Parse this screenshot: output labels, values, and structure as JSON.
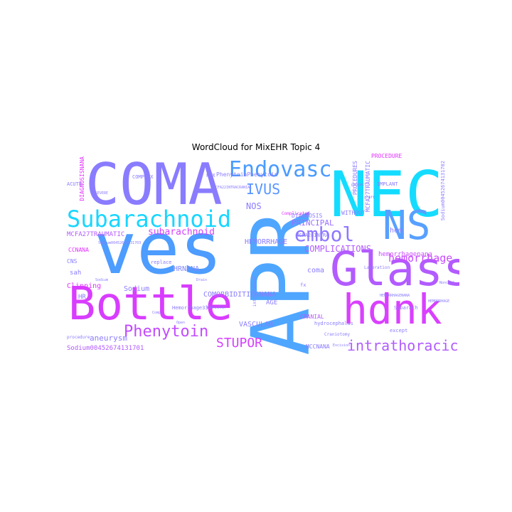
{
  "chart_data": {
    "type": "wordcloud",
    "title": "WordCloud for MixEHR Topic 4",
    "colormap": [
      "#00e5ff",
      "#4da6ff",
      "#8c78ff",
      "#b057ff",
      "#e033ff",
      "#ff19ff"
    ],
    "words": [
      {
        "text": "APR",
        "weight": 100,
        "color": "#4fa6ff",
        "rotate": true
      },
      {
        "text": "ves",
        "weight": 90,
        "color": "#4d9cff",
        "rotate": false
      },
      {
        "text": "NEC",
        "weight": 85,
        "color": "#14dcff",
        "rotate": false
      },
      {
        "text": "COMA",
        "weight": 75,
        "color": "#8a7cff",
        "rotate": false
      },
      {
        "text": "Bottle",
        "weight": 70,
        "color": "#d83dff",
        "rotate": false
      },
      {
        "text": "Glass",
        "weight": 66,
        "color": "#b25bff",
        "rotate": false
      },
      {
        "text": "hdnk",
        "weight": 64,
        "color": "#d940ff",
        "rotate": false
      },
      {
        "text": "NS",
        "weight": 55,
        "color": "#58a0ff",
        "rotate": false
      },
      {
        "text": "Subarachnoid",
        "weight": 35,
        "color": "#19d6ff",
        "rotate": false
      },
      {
        "text": "Endovasc",
        "weight": 30,
        "color": "#4a9bff",
        "rotate": false
      },
      {
        "text": "embol",
        "weight": 28,
        "color": "#8e78ff",
        "rotate": false
      },
      {
        "text": "Phenytoin",
        "weight": 24,
        "color": "#c24bff",
        "rotate": false
      },
      {
        "text": "intrathoracic",
        "weight": 22,
        "color": "#b05cff",
        "rotate": false
      },
      {
        "text": "IVUS",
        "weight": 20,
        "color": "#5a96ff",
        "rotate": false
      },
      {
        "text": "STUPOR",
        "weight": 17,
        "color": "#d43fff",
        "rotate": false
      },
      {
        "text": "hemorrhage",
        "weight": 16,
        "color": "#c94aff",
        "rotate": false
      },
      {
        "text": "subarachnoid",
        "weight": 14,
        "color": "#d43fff",
        "rotate": false
      },
      {
        "text": "COMPLICATIONS",
        "weight": 13,
        "color": "#b25bff",
        "rotate": false
      },
      {
        "text": "NOS",
        "weight": 12,
        "color": "#8a7cff",
        "rotate": false
      },
      {
        "text": "PRINCIPAL",
        "weight": 11,
        "color": "#9a70ff",
        "rotate": false
      },
      {
        "text": "aneurysm",
        "weight": 11,
        "color": "#8a7cff",
        "rotate": false
      },
      {
        "text": "HEMORRHAGE",
        "weight": 10,
        "color": "#8a7cff",
        "rotate": false
      },
      {
        "text": "Sodium",
        "weight": 10,
        "color": "#8a7cff",
        "rotate": false
      },
      {
        "text": "HRNANA",
        "weight": 10,
        "color": "#7d86ff",
        "rotate": false
      },
      {
        "text": "COMORBIDITIESNANA",
        "weight": 10,
        "color": "#8a7cff",
        "rotate": false
      },
      {
        "text": "Clipping",
        "weight": 10,
        "color": "#e033ff",
        "rotate": false
      },
      {
        "text": "VASCULAR",
        "weight": 10,
        "color": "#8a7cff",
        "rotate": false
      },
      {
        "text": "coma",
        "weight": 10,
        "color": "#8a7cff",
        "rotate": false
      },
      {
        "text": "hem",
        "weight": 10,
        "color": "#8a7cff",
        "rotate": false
      },
      {
        "text": "HR",
        "weight": 9,
        "color": "#8a7cff",
        "rotate": false
      },
      {
        "text": "AGE",
        "weight": 9,
        "color": "#8a7cff",
        "rotate": false
      },
      {
        "text": "sah",
        "weight": 9,
        "color": "#8a7cff",
        "rotate": false
      },
      {
        "text": "Sodium00452674131701",
        "weight": 9,
        "color": "#b25bff",
        "rotate": false
      },
      {
        "text": "MCFA27TRAUMATIC",
        "weight": 9,
        "color": "#b25bff",
        "rotate": false
      },
      {
        "text": "hemorrhagenana",
        "weight": 9,
        "color": "#c94aff",
        "rotate": false
      },
      {
        "text": "PhenytoinPhenytoin",
        "weight": 8,
        "color": "#8a7cff",
        "rotate": false
      },
      {
        "text": "DIAGNOSIS",
        "weight": 8,
        "color": "#8a7cff",
        "rotate": false
      },
      {
        "text": "PROCEDURE",
        "weight": 8,
        "color": "#e033ff",
        "rotate": false
      },
      {
        "text": "WITHOUT",
        "weight": 8,
        "color": "#8a7cff",
        "rotate": false
      },
      {
        "text": "CRANIAL",
        "weight": 8,
        "color": "#b25bff",
        "rotate": false
      },
      {
        "text": "CCNANA",
        "weight": 8,
        "color": "#e033ff",
        "rotate": false
      },
      {
        "text": "MCCNANA",
        "weight": 8,
        "color": "#8a7cff",
        "rotate": false
      },
      {
        "text": "CNS",
        "weight": 8,
        "color": "#8a7cff",
        "rotate": false
      },
      {
        "text": "DIAGNOSISNANA",
        "weight": 8,
        "color": "#e033ff",
        "rotate": true
      },
      {
        "text": "PROCEDURES",
        "weight": 8,
        "color": "#8a7cff",
        "rotate": true
      },
      {
        "text": "MCFA27TRAUMATIC",
        "weight": 8,
        "color": "#8a7cff",
        "rotate": true
      },
      {
        "text": "IMPLANT",
        "weight": 7,
        "color": "#8a7cff",
        "rotate": false
      },
      {
        "text": "MCFA28INTRA",
        "weight": 7,
        "color": "#8a7cff",
        "rotate": false
      },
      {
        "text": "hydrocephalus",
        "weight": 7,
        "color": "#8a7cff",
        "rotate": false
      },
      {
        "text": "Sodium00452674131702",
        "weight": 7,
        "color": "#8a7cff",
        "rotate": true
      },
      {
        "text": "ACUTE",
        "weight": 7,
        "color": "#8a7cff",
        "rotate": false
      },
      {
        "text": "COMPLEX",
        "weight": 7,
        "color": "#8a7cff",
        "rotate": false
      },
      {
        "text": "replace",
        "weight": 7,
        "color": "#8a7cff",
        "rotate": false
      },
      {
        "text": "Subarach",
        "weight": 7,
        "color": "#8a7cff",
        "rotate": false
      },
      {
        "text": "except",
        "weight": 7,
        "color": "#8a7cff",
        "rotate": false
      },
      {
        "text": "PDX",
        "weight": 7,
        "color": "#8a7cff",
        "rotate": false
      },
      {
        "text": "fx",
        "weight": 7,
        "color": "#8a7cff",
        "rotate": false
      },
      {
        "text": "Hemorrhage33",
        "weight": 7,
        "color": "#8a7cff",
        "rotate": false
      },
      {
        "text": "Complicated",
        "weight": 6,
        "color": "#e033ff",
        "rotate": false
      },
      {
        "text": "Craniotomy",
        "weight": 6,
        "color": "#8a7cff",
        "rotate": false
      },
      {
        "text": "Laceration",
        "weight": 6,
        "color": "#8a7cff",
        "rotate": false
      },
      {
        "text": "Vascular",
        "weight": 6,
        "color": "#8a7cff",
        "rotate": false
      },
      {
        "text": "intracranial",
        "weight": 6,
        "color": "#8a7cff",
        "rotate": true
      },
      {
        "text": "procedure",
        "weight": 6,
        "color": "#8a7cff",
        "rotate": false
      },
      {
        "text": "project",
        "weight": 5,
        "color": "#8a7cff",
        "rotate": false
      },
      {
        "text": "Open",
        "weight": 5,
        "color": "#8a7cff",
        "rotate": false
      },
      {
        "text": "Comp",
        "weight": 5,
        "color": "#8a7cff",
        "rotate": false
      },
      {
        "text": "Sodium00452674131703",
        "weight": 5,
        "color": "#8a7cff",
        "rotate": false
      },
      {
        "text": "MCFA22INTRACRANIAL",
        "weight": 5,
        "color": "#8a7cff",
        "rotate": false
      },
      {
        "text": "HEMORRHAGENANA",
        "weight": 5,
        "color": "#8a7cff",
        "rotate": false
      },
      {
        "text": "Nonclot",
        "weight": 5,
        "color": "#8a7cff",
        "rotate": false
      },
      {
        "text": "graft",
        "weight": 5,
        "color": "#8a7cff",
        "rotate": false
      },
      {
        "text": "Drain",
        "weight": 5,
        "color": "#8a7cff",
        "rotate": false
      },
      {
        "text": "Excision",
        "weight": 5,
        "color": "#8a7cff",
        "rotate": false
      },
      {
        "text": "HEMORRHAGE",
        "weight": 5,
        "color": "#8a7cff",
        "rotate": false
      },
      {
        "text": "Sodium",
        "weight": 5,
        "color": "#8a7cff",
        "rotate": false
      },
      {
        "text": "SEVERE",
        "weight": 5,
        "color": "#8a7cff",
        "rotate": false
      }
    ]
  }
}
